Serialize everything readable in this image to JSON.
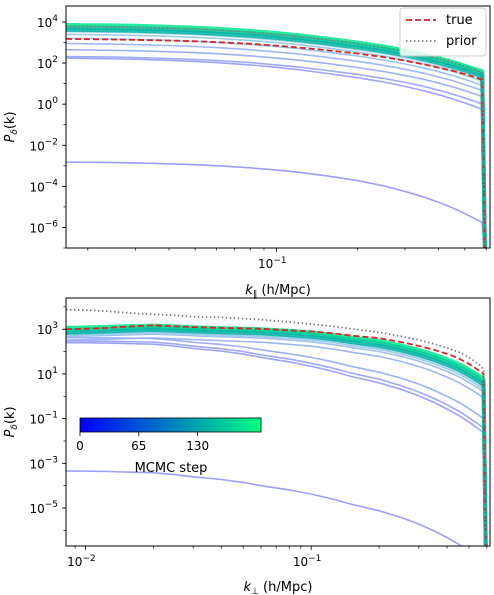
{
  "chart_data": [
    {
      "type": "line",
      "xlabel_parts": [
        "k",
        "∥",
        " (h/Mpc)"
      ],
      "ylabel_parts": [
        "P",
        "δ",
        "(k)"
      ],
      "xscale": "log",
      "yscale": "log",
      "xlim": [
        0.0166,
        0.62
      ],
      "ylim": [
        1e-07,
        60000
      ],
      "x_ticks": [
        {
          "value": 0.1,
          "label": "10",
          "exp": "−1"
        }
      ],
      "y_ticks": [
        {
          "value": 10000.0,
          "label": "10",
          "exp": "4"
        },
        {
          "value": 100.0,
          "label": "10",
          "exp": "2"
        },
        {
          "value": 1,
          "label": "10",
          "exp": "0"
        },
        {
          "value": 0.01,
          "label": "10",
          "exp": "−2"
        },
        {
          "value": 0.0001,
          "label": "10",
          "exp": "−4"
        },
        {
          "value": 1e-06,
          "label": "10",
          "exp": "−6"
        }
      ],
      "legend": {
        "placement": "top-right",
        "entries": [
          {
            "label": "true",
            "color": "#d62728",
            "style": "dashed"
          },
          {
            "label": "prior",
            "color": "#7f7f7f",
            "style": "dotted"
          }
        ]
      },
      "x": [
        0.0166,
        0.02,
        0.025,
        0.03,
        0.04,
        0.05,
        0.06,
        0.08,
        0.1,
        0.12,
        0.15,
        0.2,
        0.25,
        0.3,
        0.35,
        0.4,
        0.45,
        0.5,
        0.55,
        0.58
      ],
      "series": [
        {
          "role": "true",
          "color": "#d62728",
          "values": [
            1500,
            1450,
            1400,
            1350,
            1250,
            1150,
            1050,
            870,
            700,
            580,
            440,
            290,
            195,
            130,
            88,
            60,
            42,
            29,
            20,
            15
          ]
        },
        {
          "role": "prior",
          "color": "#7f7f7f",
          "values": [
            6000,
            5900,
            5700,
            5500,
            5000,
            4500,
            4000,
            3200,
            2500,
            2000,
            1450,
            900,
            580,
            380,
            250,
            165,
            110,
            72,
            46,
            34
          ]
        }
      ],
      "mcmc_bands": [
        {
          "step": 180,
          "values": [
            7200,
            7000,
            6800,
            6500,
            5900,
            5300,
            4700,
            3700,
            2900,
            2300,
            1650,
            1000,
            640,
            410,
            270,
            175,
            115,
            75,
            50,
            40
          ]
        },
        {
          "step": 160,
          "values": [
            5500,
            5350,
            5150,
            4900,
            4450,
            4000,
            3550,
            2800,
            2200,
            1750,
            1250,
            760,
            485,
            310,
            205,
            133,
            88,
            57,
            38,
            30
          ]
        },
        {
          "step": 140,
          "values": [
            4200,
            4080,
            3950,
            3750,
            3400,
            3050,
            2700,
            2150,
            1680,
            1330,
            950,
            580,
            370,
            240,
            157,
            102,
            67,
            44,
            29,
            23
          ]
        }
      ],
      "mcmc_lines": [
        {
          "step": 115,
          "values": [
            3400,
            3300,
            3150,
            3000,
            2700,
            2420,
            2150,
            1700,
            1320,
            1050,
            750,
            455,
            290,
            185,
            120,
            78,
            51,
            33,
            22,
            17
          ]
        },
        {
          "step": 95,
          "values": [
            2500,
            2430,
            2330,
            2220,
            2000,
            1800,
            1600,
            1270,
            990,
            790,
            565,
            345,
            220,
            142,
            93,
            61,
            40,
            26,
            17,
            13
          ]
        },
        {
          "step": 75,
          "values": [
            1600,
            1550,
            1490,
            1420,
            1280,
            1150,
            1020,
            810,
            635,
            505,
            360,
            220,
            140,
            90,
            59,
            38,
            25,
            16,
            10.5,
            8
          ]
        },
        {
          "step": 55,
          "values": [
            900,
            870,
            835,
            795,
            715,
            640,
            570,
            450,
            350,
            280,
            200,
            122,
            78,
            50,
            33,
            21,
            14,
            9,
            6,
            4.6
          ]
        },
        {
          "step": 40,
          "values": [
            450,
            435,
            418,
            398,
            358,
            320,
            285,
            225,
            175,
            140,
            100,
            61,
            39,
            25,
            16.5,
            10.7,
            7,
            4.6,
            3,
            2.3
          ]
        },
        {
          "step": 25,
          "values": [
            210,
            203,
            195,
            186,
            167,
            149,
            133,
            105,
            82,
            65,
            46,
            28,
            18,
            11.5,
            7.5,
            4.8,
            3.1,
            2,
            1.3,
            1
          ]
        },
        {
          "step": 12,
          "values": [
            175,
            169,
            162,
            154,
            137,
            121,
            106,
            82,
            62,
            48,
            33,
            19.5,
            12,
            7.3,
            4.6,
            2.9,
            1.8,
            1.15,
            0.73,
            0.55
          ]
        },
        {
          "step": 1,
          "values": [
            0.0015,
            0.00148,
            0.00143,
            0.00138,
            0.00126,
            0.00113,
            0.00101,
            0.0008,
            0.00062,
            0.00049,
            0.00034,
            0.00019,
            0.000105,
            5.7e-05,
            3.1e-05,
            1.7e-05,
            9e-06,
            4.8e-06,
            2.5e-06,
            1.8e-06
          ]
        }
      ],
      "cutoff_x": 0.595
    },
    {
      "type": "line",
      "xlabel_parts": [
        "k",
        "⊥",
        " (h/Mpc)"
      ],
      "ylabel_parts": [
        "P",
        "δ",
        "(k)"
      ],
      "xscale": "log",
      "yscale": "log",
      "xlim": [
        0.0082,
        0.62
      ],
      "ylim": [
        2e-07,
        25000
      ],
      "x_ticks": [
        {
          "value": 0.01,
          "label": "10",
          "exp": "−2"
        },
        {
          "value": 0.1,
          "label": "10",
          "exp": "−1"
        }
      ],
      "y_ticks": [
        {
          "value": 1000,
          "label": "10",
          "exp": "3"
        },
        {
          "value": 10,
          "label": "10",
          "exp": "1"
        },
        {
          "value": 0.1,
          "label": "10",
          "exp": "−1"
        },
        {
          "value": 0.001,
          "label": "10",
          "exp": "−3"
        },
        {
          "value": 1e-05,
          "label": "10",
          "exp": "−5"
        }
      ],
      "colorbar": {
        "label": "MCMC step",
        "ticks": [
          {
            "value": 0,
            "label": "0"
          },
          {
            "value": 65,
            "label": "65"
          },
          {
            "value": 130,
            "label": "130"
          }
        ],
        "range": [
          0,
          200
        ],
        "colors": [
          "#0000ff",
          "#00ff80"
        ]
      },
      "x": [
        0.0082,
        0.01,
        0.0125,
        0.015,
        0.02,
        0.025,
        0.03,
        0.04,
        0.05,
        0.06,
        0.08,
        0.1,
        0.125,
        0.15,
        0.2,
        0.25,
        0.3,
        0.35,
        0.4,
        0.45,
        0.5,
        0.55,
        0.58
      ],
      "series": [
        {
          "role": "true",
          "color": "#d62728",
          "values": [
            1000,
            1050,
            1150,
            1300,
            1500,
            1350,
            1250,
            1150,
            1100,
            1050,
            900,
            800,
            650,
            520,
            400,
            270,
            180,
            120,
            80,
            50,
            28,
            15,
            10
          ]
        },
        {
          "role": "prior",
          "color": "#7f7f7f",
          "values": [
            7500,
            7200,
            6400,
            5500,
            4600,
            4200,
            3600,
            3400,
            3000,
            2700,
            2100,
            1700,
            1350,
            1050,
            720,
            490,
            330,
            220,
            145,
            95,
            55,
            28,
            16
          ]
        }
      ],
      "mcmc_bands": [
        {
          "step": 180,
          "values": [
            1150,
            1200,
            1280,
            1350,
            1450,
            1320,
            1220,
            1120,
            1060,
            1000,
            850,
            720,
            560,
            430,
            300,
            190,
            120,
            75,
            46,
            28,
            16,
            9,
            6
          ]
        },
        {
          "step": 160,
          "values": [
            900,
            940,
            1010,
            1080,
            1170,
            1080,
            1000,
            920,
            870,
            820,
            690,
            585,
            450,
            345,
            235,
            148,
            92,
            57,
            35,
            21,
            12,
            6.5,
            4.5
          ]
        },
        {
          "step": 140,
          "values": [
            700,
            730,
            790,
            850,
            930,
            860,
            800,
            735,
            690,
            650,
            545,
            460,
            355,
            270,
            182,
            114,
            70,
            43,
            26,
            15.5,
            8.8,
            4.8,
            3.3
          ]
        }
      ],
      "mcmc_lines": [
        {
          "step": 115,
          "values": [
            640,
            660,
            700,
            740,
            800,
            740,
            690,
            630,
            590,
            555,
            465,
            390,
            300,
            225,
            150,
            93,
            57,
            35,
            21,
            12.5,
            7,
            3.8,
            2.6
          ]
        },
        {
          "step": 95,
          "values": [
            560,
            580,
            615,
            650,
            700,
            645,
            600,
            545,
            510,
            478,
            398,
            333,
            255,
            190,
            126,
            78,
            47,
            28.5,
            17,
            10,
            5.6,
            3,
            2.1
          ]
        },
        {
          "step": 75,
          "values": [
            480,
            495,
            525,
            555,
            600,
            550,
            510,
            462,
            430,
            400,
            330,
            275,
            208,
            154,
            101,
            62,
            37,
            22,
            13,
            7.6,
            4.2,
            2.3,
            1.6
          ]
        },
        {
          "step": 55,
          "values": [
            330,
            340,
            360,
            380,
            410,
            372,
            343,
            308,
            284,
            262,
            213,
            175,
            130,
            95,
            61,
            36.5,
            21.5,
            12.6,
            7.3,
            4.2,
            2.3,
            1.25,
            0.85
          ]
        },
        {
          "step": 40,
          "values": [
            420,
            420,
            410,
            400,
            380,
            320,
            260,
            210,
            160,
            120,
            80,
            55,
            35,
            22,
            12,
            6.5,
            3.5,
            1.9,
            1,
            0.55,
            0.28,
            0.15,
            0.1
          ]
        },
        {
          "step": 25,
          "values": [
            300,
            300,
            290,
            280,
            265,
            220,
            175,
            135,
            100,
            72,
            46,
            30,
            18,
            11,
            5.8,
            3,
            1.55,
            0.8,
            0.42,
            0.22,
            0.11,
            0.057,
            0.038
          ]
        },
        {
          "step": 12,
          "values": [
            250,
            250,
            240,
            230,
            215,
            175,
            138,
            105,
            77,
            55,
            34.5,
            22,
            13,
            7.8,
            4,
            2.05,
            1.04,
            0.53,
            0.27,
            0.14,
            0.07,
            0.036,
            0.024
          ]
        },
        {
          "step": 1,
          "values": [
            0.00045,
            0.00045,
            0.00043,
            0.00041,
            0.00038,
            0.00031,
            0.00025,
            0.00019,
            0.00014,
            0.0001,
            6.5e-05,
            4.2e-05,
            2.5e-05,
            1.5e-05,
            7.5e-06,
            3.8e-06,
            1.9e-06,
            9.5e-07,
            4.8e-07,
            2.4e-07,
            1.2e-07,
            6e-08,
            4e-08
          ]
        }
      ],
      "cutoff_x": 0.595
    }
  ]
}
